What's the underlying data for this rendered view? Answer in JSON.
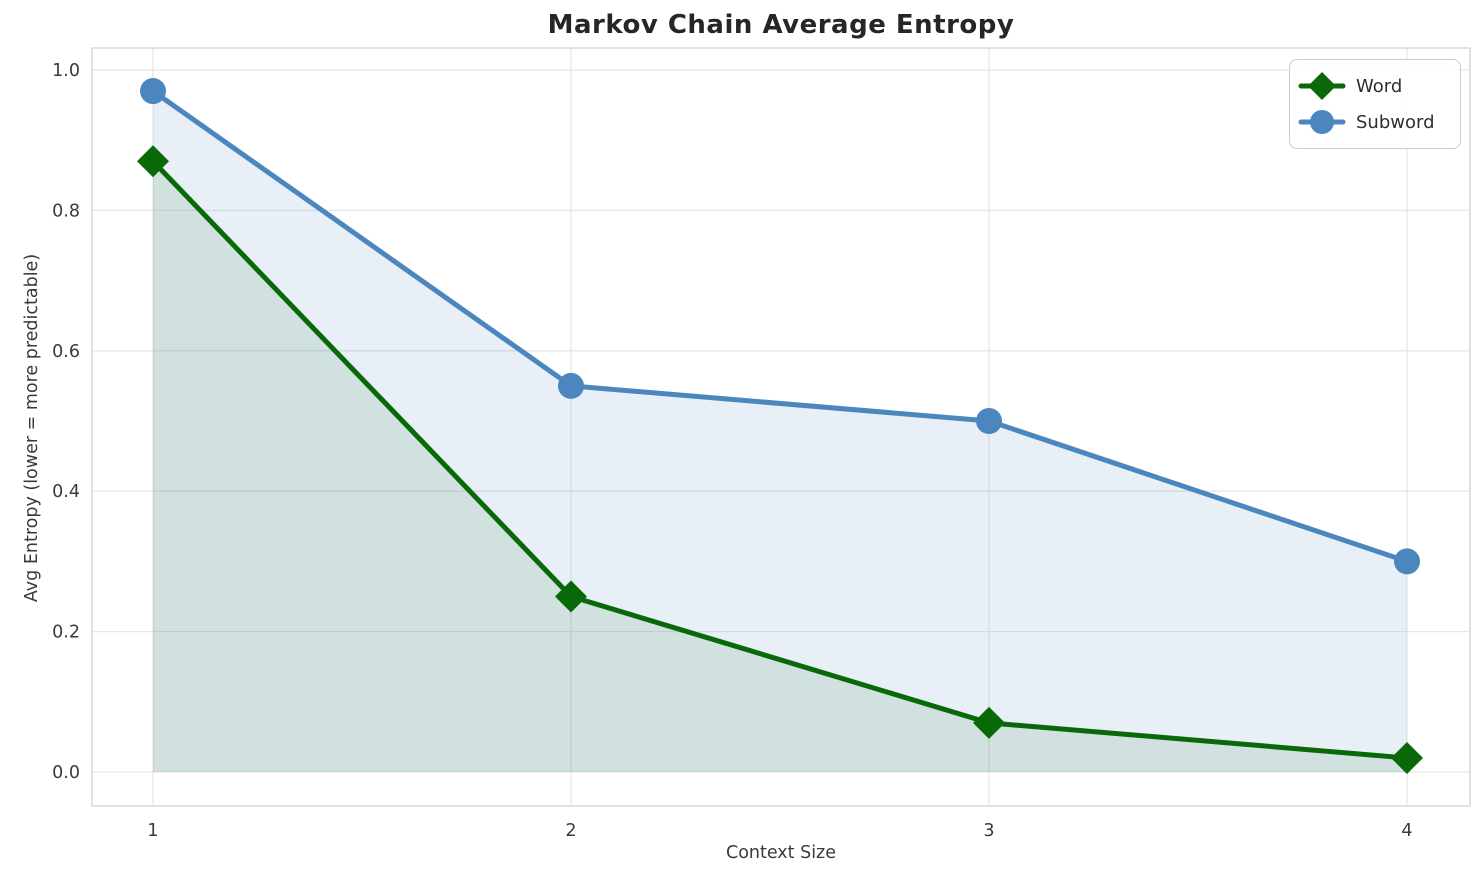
{
  "chart_data": {
    "type": "line",
    "title": "Markov Chain Average Entropy",
    "xlabel": "Context Size",
    "ylabel": "Avg Entropy (lower = more predictable)",
    "x": [
      1,
      2,
      3,
      4
    ],
    "series": [
      {
        "name": "Word",
        "values": [
          0.87,
          0.25,
          0.07,
          0.02
        ],
        "color": "#096909",
        "fill_color": "rgba(9,105,9,0.11)",
        "marker": "diamond",
        "area_fill": true
      },
      {
        "name": "Subword",
        "values": [
          0.97,
          0.55,
          0.5,
          0.3
        ],
        "color": "#4c86be",
        "fill_color": "rgba(76,134,190,0.13)",
        "marker": "circle",
        "area_fill": true
      }
    ],
    "xtick_values": [
      1,
      2,
      3,
      4
    ],
    "xtick_labels": [
      "1",
      "2",
      "3",
      "4"
    ],
    "ytick_values": [
      0.0,
      0.2,
      0.4,
      0.6,
      0.8,
      1.0
    ],
    "ytick_labels": [
      "0.0",
      "0.2",
      "0.4",
      "0.6",
      "0.8",
      "1.0"
    ],
    "xlim": [
      0.854,
      4.151
    ],
    "ylim": [
      -0.048,
      1.031
    ],
    "grid": true,
    "grid_color": "#e7e7e7",
    "frame_color": "#d8d8d8",
    "tick_color": "#3a3a3a",
    "legend_position": "upper right"
  }
}
